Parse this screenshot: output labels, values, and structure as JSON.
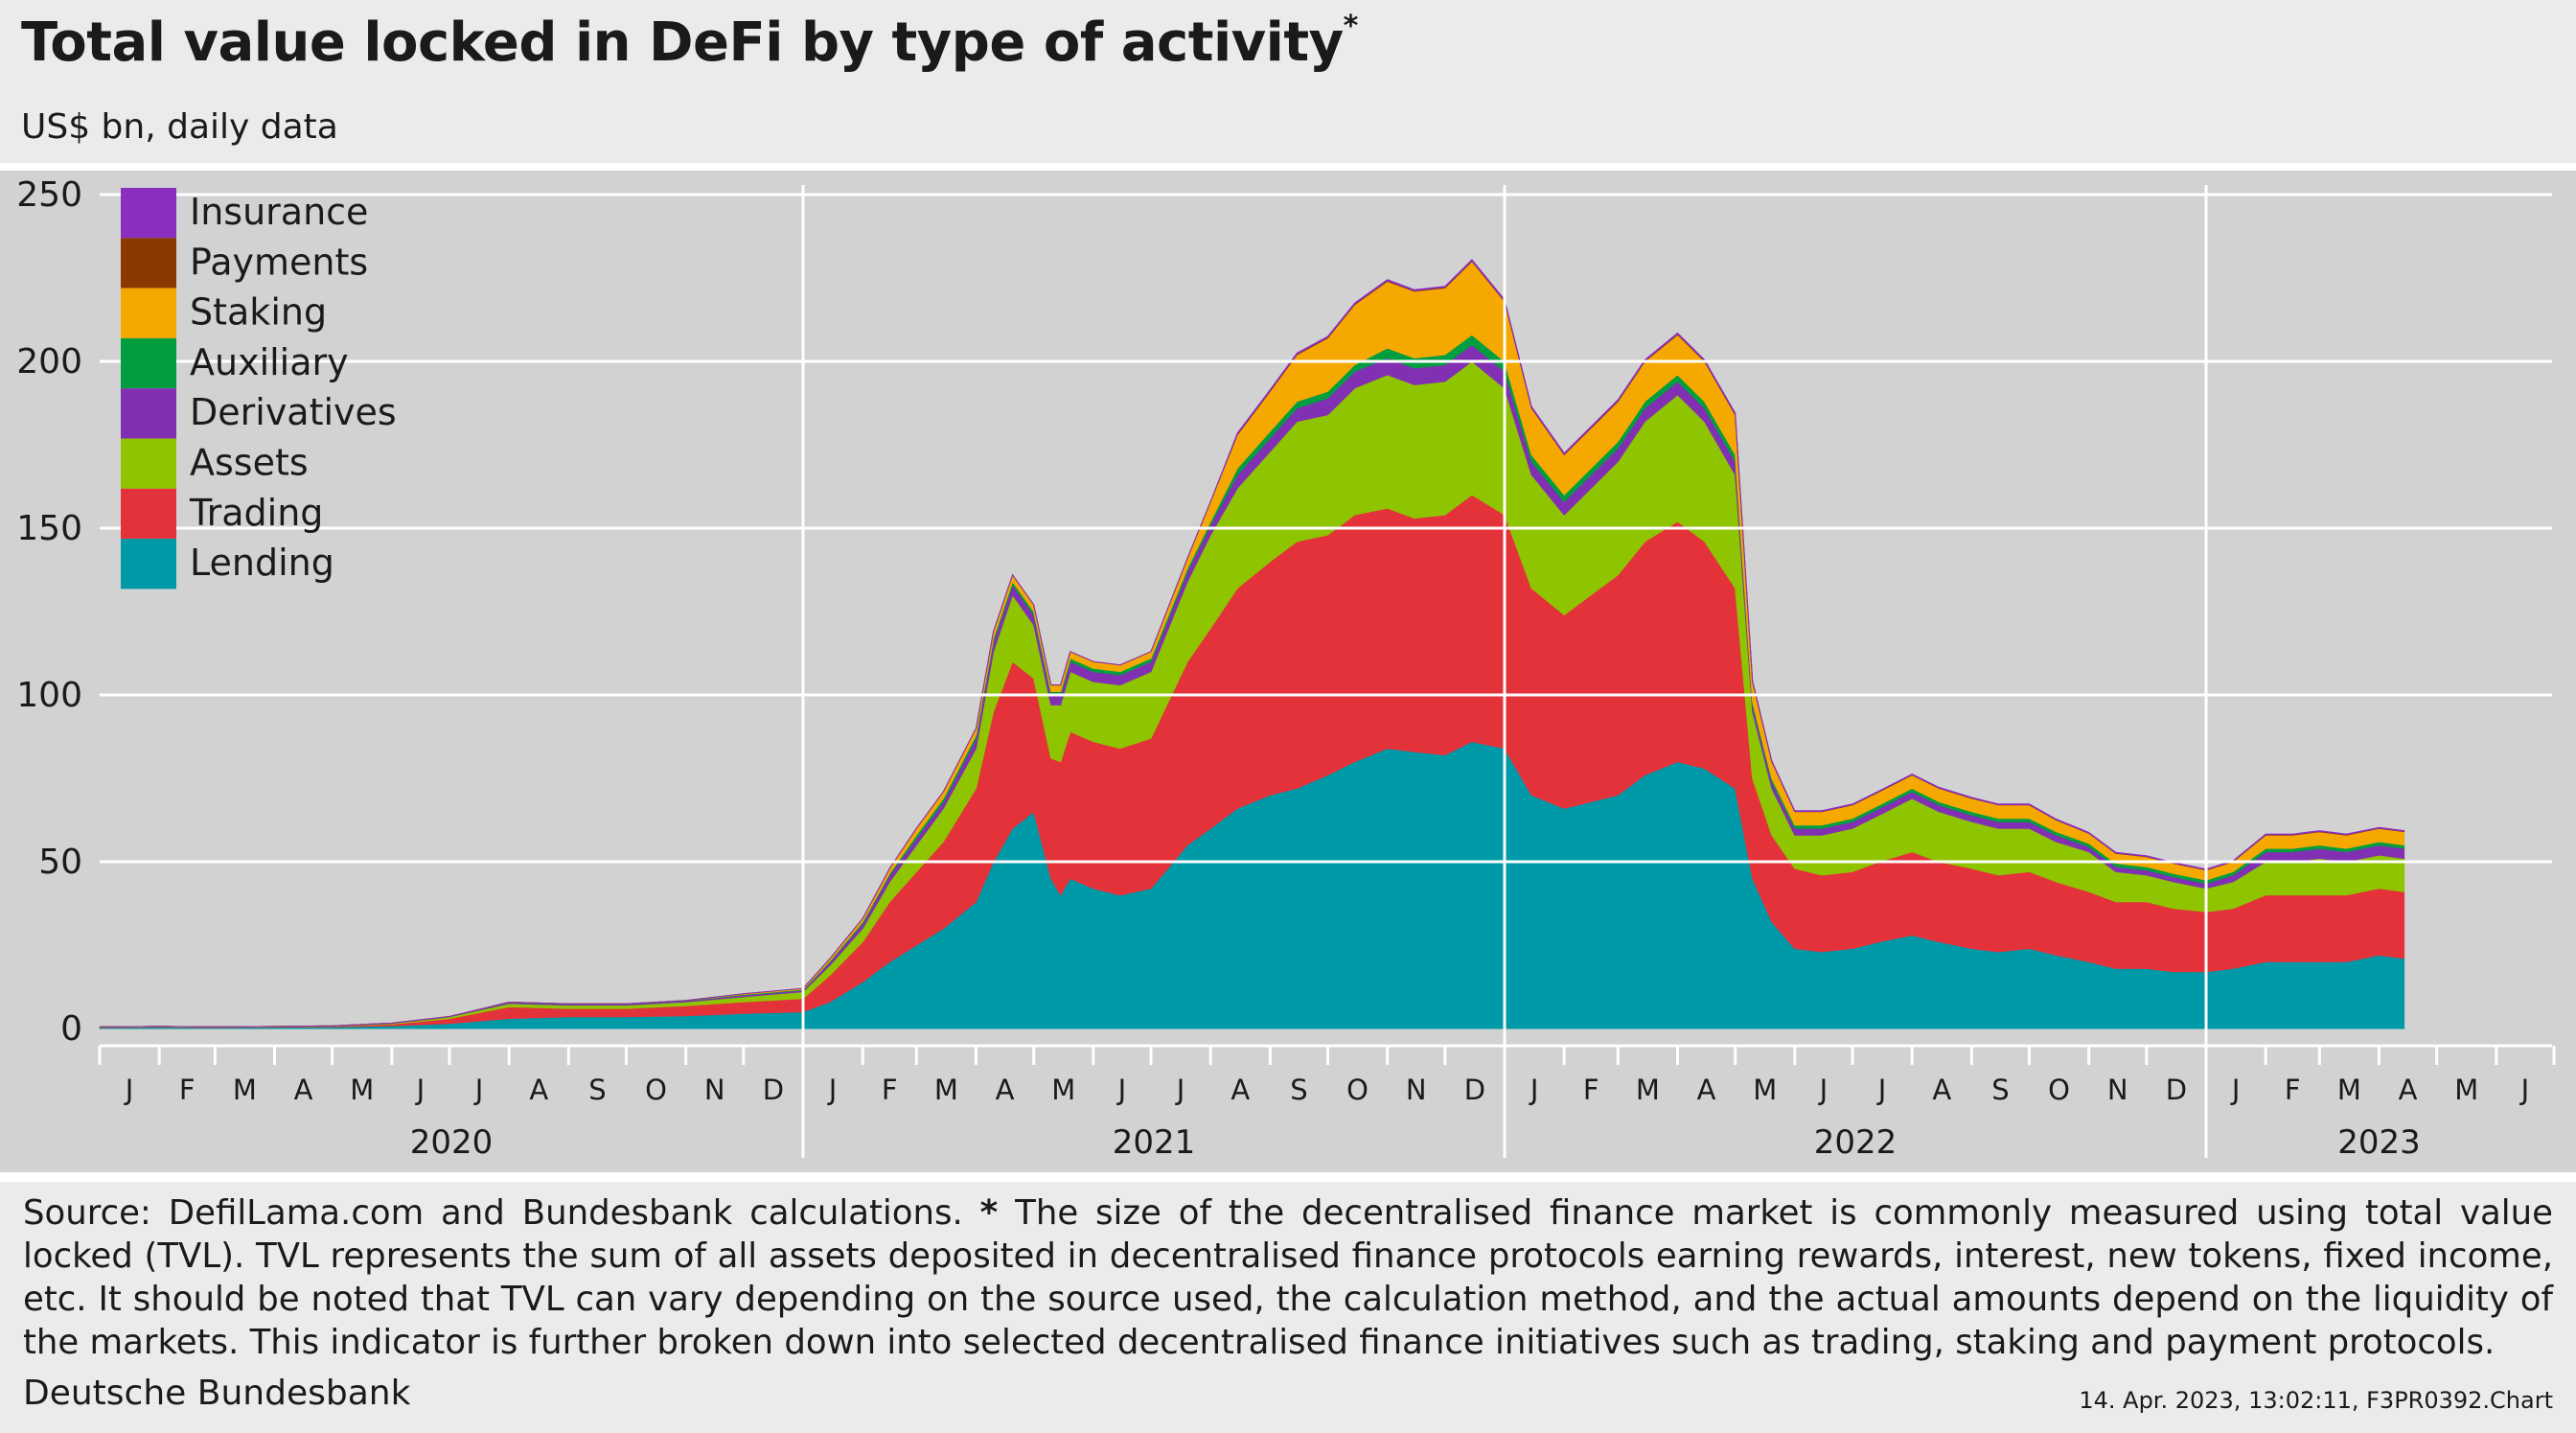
{
  "header": {
    "title": "Total value locked in DeFi by type of activity",
    "title_marker": "*",
    "subtitle": "US$ bn, daily data"
  },
  "footer": {
    "source_lead": "Source: DefilLama.com and Bundesbank calculations.",
    "footnote_marker": "*",
    "source_rest": "The size of the decentralised finance market is commonly measured using total value locked (TVL). TVL represents the sum of all assets deposited in decentralised finance protocols earning rewards, interest, new tokens, fixed income, etc. It should be noted that TVL can vary depending on the source used, the calculation method, and the actual amounts depend on the liquidity of the markets. This indicator is further broken down into selected decentralised finance initiatives such as trading, staking and payment protocols.",
    "organisation": "Deutsche Bundesbank",
    "timestamp": "14. Apr. 2023, 13:02:11, F3PR0392.Chart"
  },
  "chart_data": {
    "type": "area",
    "stacked": true,
    "title": "Total value locked in DeFi by type of activity",
    "subtitle": "US$ bn, daily data",
    "ylim": [
      0,
      250
    ],
    "yticks": [
      0,
      50,
      100,
      150,
      200,
      250
    ],
    "xlim": [
      "2020-01-01",
      "2023-06-30"
    ],
    "x_month_labels": [
      "J",
      "F",
      "M",
      "A",
      "M",
      "J",
      "J",
      "A",
      "S",
      "O",
      "N",
      "D",
      "J",
      "F",
      "M",
      "A",
      "M",
      "J",
      "J",
      "A",
      "S",
      "O",
      "N",
      "D",
      "J",
      "F",
      "M",
      "A",
      "M",
      "J",
      "J",
      "A",
      "S",
      "O",
      "N",
      "D",
      "J",
      "F",
      "M",
      "A",
      "M",
      "J"
    ],
    "x_year_labels": [
      "2020",
      "2021",
      "2022",
      "2023"
    ],
    "grid": "horizontal and year dividers",
    "legend_position": "top-left",
    "colors": {
      "Lending": "#0099a8",
      "Trading": "#e3323a",
      "Assets": "#8fc400",
      "Derivatives": "#8130b4",
      "Auxiliary": "#009e3e",
      "Staking": "#f5a800",
      "Payments": "#8a3a00",
      "Insurance": "#8a2fc0"
    },
    "legend": [
      "Insurance",
      "Payments",
      "Staking",
      "Auxiliary",
      "Derivatives",
      "Assets",
      "Trading",
      "Lending"
    ],
    "x": [
      "2020-01-01",
      "2020-02-01",
      "2020-03-01",
      "2020-04-01",
      "2020-05-01",
      "2020-06-01",
      "2020-07-01",
      "2020-08-01",
      "2020-09-01",
      "2020-10-01",
      "2020-11-01",
      "2020-12-01",
      "2021-01-01",
      "2021-01-15",
      "2021-02-01",
      "2021-02-15",
      "2021-03-01",
      "2021-03-15",
      "2021-04-01",
      "2021-04-10",
      "2021-04-20",
      "2021-05-01",
      "2021-05-10",
      "2021-05-15",
      "2021-05-20",
      "2021-06-01",
      "2021-06-15",
      "2021-07-01",
      "2021-07-20",
      "2021-08-01",
      "2021-08-15",
      "2021-09-01",
      "2021-09-15",
      "2021-10-01",
      "2021-10-15",
      "2021-11-01",
      "2021-11-15",
      "2021-12-01",
      "2021-12-15",
      "2022-01-01",
      "2022-01-15",
      "2022-02-01",
      "2022-02-15",
      "2022-03-01",
      "2022-03-15",
      "2022-04-01",
      "2022-04-15",
      "2022-05-01",
      "2022-05-10",
      "2022-05-20",
      "2022-06-01",
      "2022-06-15",
      "2022-07-01",
      "2022-07-15",
      "2022-08-01",
      "2022-08-15",
      "2022-09-01",
      "2022-09-15",
      "2022-10-01",
      "2022-10-15",
      "2022-11-01",
      "2022-11-15",
      "2022-12-01",
      "2022-12-15",
      "2023-01-01",
      "2023-01-15",
      "2023-02-01",
      "2023-02-15",
      "2023-03-01",
      "2023-03-15",
      "2023-04-01",
      "2023-04-14"
    ],
    "series": [
      {
        "name": "Lending",
        "values": [
          0.3,
          0.4,
          0.3,
          0.4,
          0.5,
          0.8,
          1.5,
          3,
          3.5,
          3.5,
          3.8,
          4.5,
          5,
          8,
          14,
          20,
          25,
          30,
          38,
          50,
          60,
          65,
          45,
          40,
          45,
          42,
          40,
          42,
          55,
          60,
          66,
          70,
          72,
          76,
          80,
          84,
          83,
          82,
          86,
          84,
          70,
          66,
          68,
          70,
          76,
          80,
          78,
          72,
          45,
          32,
          24,
          23,
          24,
          26,
          28,
          26,
          24,
          23,
          24,
          22,
          20,
          18,
          18,
          17,
          17,
          18,
          20,
          20,
          20,
          20,
          22,
          21
        ]
      },
      {
        "name": "Trading",
        "values": [
          0.1,
          0.1,
          0.1,
          0.1,
          0.2,
          0.5,
          1.5,
          3.5,
          2.5,
          2.5,
          3,
          3.5,
          4,
          8,
          12,
          18,
          22,
          26,
          34,
          45,
          50,
          40,
          36,
          40,
          44,
          44,
          44,
          45,
          55,
          60,
          66,
          70,
          74,
          72,
          74,
          72,
          70,
          72,
          74,
          70,
          62,
          58,
          62,
          66,
          70,
          72,
          68,
          60,
          30,
          26,
          24,
          23,
          23,
          24,
          25,
          24,
          24,
          23,
          23,
          22,
          21,
          20,
          20,
          19,
          18,
          18,
          20,
          20,
          20,
          20,
          20,
          20
        ]
      },
      {
        "name": "Assets",
        "values": [
          0.1,
          0.1,
          0.1,
          0.1,
          0.1,
          0.2,
          0.5,
          1,
          1,
          1,
          1.2,
          1.5,
          2,
          3,
          4,
          6,
          8,
          10,
          12,
          18,
          20,
          16,
          16,
          17,
          18,
          18,
          19,
          20,
          24,
          28,
          30,
          33,
          36,
          36,
          38,
          40,
          40,
          40,
          40,
          38,
          34,
          30,
          32,
          34,
          36,
          38,
          36,
          34,
          20,
          14,
          10,
          12,
          13,
          14,
          16,
          15,
          14,
          14,
          13,
          12,
          12,
          9,
          8,
          8,
          7,
          8,
          10,
          10,
          11,
          10,
          10,
          10
        ]
      },
      {
        "name": "Derivatives",
        "values": [
          0,
          0,
          0,
          0,
          0,
          0.1,
          0.1,
          0.3,
          0.3,
          0.3,
          0.3,
          0.5,
          0.5,
          1,
          1.5,
          2,
          2,
          2,
          3,
          3,
          3,
          3,
          3,
          3,
          3,
          3,
          3,
          3,
          3,
          3,
          4,
          4,
          4,
          5,
          5,
          5,
          5,
          5,
          5,
          5,
          4,
          4,
          4,
          4,
          4,
          4,
          4,
          4,
          2,
          2,
          2,
          2,
          2,
          2,
          2,
          2,
          2,
          2,
          2,
          2,
          1.5,
          1.5,
          1.5,
          1.5,
          1.5,
          2,
          3,
          3,
          3,
          3,
          3,
          3
        ]
      },
      {
        "name": "Auxiliary",
        "values": [
          0,
          0,
          0,
          0,
          0,
          0,
          0,
          0.1,
          0.1,
          0.1,
          0.1,
          0.2,
          0.2,
          0.3,
          0.5,
          0.5,
          1,
          1,
          1,
          1,
          1,
          1,
          1,
          1,
          1,
          1,
          1,
          1,
          1,
          1,
          2,
          2,
          2,
          2,
          2,
          3,
          3,
          3,
          3,
          3,
          2,
          2,
          2,
          2,
          2,
          2,
          2,
          2,
          1,
          1,
          1,
          1,
          1,
          1,
          1,
          1,
          1,
          1,
          1,
          1,
          1,
          1,
          1,
          1,
          1,
          1,
          1,
          1,
          1,
          1,
          1,
          1
        ]
      },
      {
        "name": "Staking",
        "values": [
          0,
          0,
          0,
          0,
          0,
          0,
          0,
          0,
          0,
          0,
          0,
          0.2,
          0.3,
          0.7,
          1,
          1.5,
          2,
          2,
          2,
          2,
          2,
          2,
          2,
          2,
          2,
          2,
          2,
          2,
          3,
          6,
          10,
          12,
          14,
          16,
          18,
          20,
          20,
          20,
          22,
          18,
          14,
          12,
          12,
          12,
          12,
          12,
          12,
          12,
          6,
          5,
          4,
          4,
          4,
          4,
          4,
          4,
          4,
          4,
          4,
          3.5,
          3,
          3,
          3,
          3,
          3,
          3,
          4,
          4,
          4,
          4,
          4,
          4
        ]
      },
      {
        "name": "Payments",
        "values": [
          0,
          0,
          0,
          0,
          0,
          0,
          0,
          0,
          0,
          0,
          0,
          0,
          0,
          0,
          0,
          0,
          0,
          0,
          0,
          0,
          0,
          0,
          0,
          0,
          0,
          0,
          0,
          0,
          0,
          0,
          0.2,
          0.2,
          0.2,
          0.2,
          0.2,
          0.2,
          0.2,
          0.2,
          0.2,
          0.2,
          0.2,
          0.2,
          0.2,
          0.2,
          0.2,
          0.2,
          0.2,
          0.2,
          0.1,
          0.1,
          0.1,
          0.1,
          0.1,
          0.1,
          0.1,
          0.1,
          0.1,
          0.1,
          0.1,
          0.1,
          0.1,
          0.1,
          0.1,
          0.1,
          0.1,
          0.1,
          0.1,
          0.1,
          0.1,
          0.1,
          0.1,
          0.1
        ]
      },
      {
        "name": "Insurance",
        "values": [
          0,
          0,
          0,
          0,
          0,
          0,
          0,
          0,
          0,
          0,
          0,
          0,
          0,
          0,
          0,
          0,
          0,
          0,
          0,
          0,
          0,
          0,
          0,
          0,
          0,
          0,
          0,
          0,
          0,
          0,
          0.3,
          0.3,
          0.3,
          0.3,
          0.3,
          0.3,
          0.3,
          0.3,
          0.3,
          0.3,
          0.3,
          0.3,
          0.3,
          0.3,
          0.3,
          0.3,
          0.3,
          0.3,
          0.2,
          0.2,
          0.2,
          0.2,
          0.2,
          0.2,
          0.2,
          0.2,
          0.2,
          0.2,
          0.2,
          0.2,
          0.2,
          0.2,
          0.2,
          0.2,
          0.2,
          0.2,
          0.2,
          0.2,
          0.2,
          0.2,
          0.2,
          0.2
        ]
      }
    ]
  }
}
